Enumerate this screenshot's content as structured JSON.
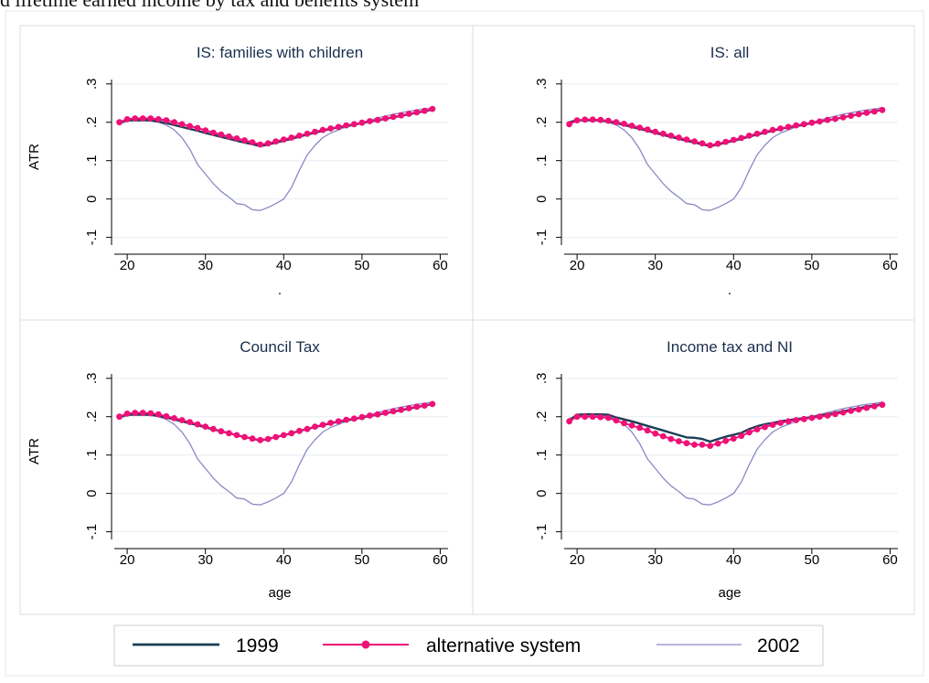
{
  "page_caption": "d lifetime earned income by tax and benefits system",
  "colors": {
    "s1999": "#1c3d55",
    "alternative": "#ee1177",
    "s2002": "#8a89c4",
    "grid": "#e8eef2",
    "axis": "#000000",
    "title": "#1a2f4e",
    "panel_border": "#dddddd"
  },
  "legend": {
    "items": [
      {
        "label": "1999",
        "series": "s1999"
      },
      {
        "label": "alternative system",
        "series": "alternative"
      },
      {
        "label": "2002",
        "series": "s2002"
      }
    ]
  },
  "chart_data": [
    {
      "type": "line",
      "title": "IS: families with children",
      "ylabel": "ATR",
      "xlabel": ".",
      "xlim": [
        18,
        61
      ],
      "ylim": [
        -0.12,
        0.34
      ],
      "x_ticks": [
        20,
        30,
        40,
        50,
        60
      ],
      "y_ticks": [
        -0.1,
        0,
        0.1,
        0.2,
        0.3
      ],
      "y_tick_labels": [
        "-.1",
        "0",
        ".1",
        ".2",
        ".3"
      ],
      "x": [
        19,
        20,
        21,
        22,
        23,
        24,
        25,
        26,
        27,
        28,
        29,
        30,
        31,
        32,
        33,
        34,
        35,
        36,
        37,
        38,
        39,
        40,
        41,
        42,
        43,
        44,
        45,
        46,
        47,
        48,
        49,
        50,
        51,
        52,
        53,
        54,
        55,
        56,
        57,
        58,
        59
      ],
      "series": [
        {
          "name": "1999",
          "key": "s1999",
          "values": [
            0.2,
            0.205,
            0.205,
            0.205,
            0.205,
            0.202,
            0.198,
            0.193,
            0.188,
            0.183,
            0.178,
            0.172,
            0.167,
            0.162,
            0.157,
            0.152,
            0.147,
            0.143,
            0.138,
            0.142,
            0.147,
            0.152,
            0.157,
            0.163,
            0.168,
            0.173,
            0.178,
            0.183,
            0.187,
            0.19,
            0.194,
            0.198,
            0.202,
            0.205,
            0.209,
            0.213,
            0.217,
            0.221,
            0.225,
            0.229,
            0.233
          ]
        },
        {
          "name": "alternative system",
          "key": "alternative",
          "values": [
            0.2,
            0.208,
            0.21,
            0.21,
            0.21,
            0.208,
            0.205,
            0.2,
            0.195,
            0.19,
            0.185,
            0.179,
            0.173,
            0.168,
            0.163,
            0.158,
            0.153,
            0.148,
            0.142,
            0.145,
            0.15,
            0.155,
            0.16,
            0.165,
            0.17,
            0.175,
            0.18,
            0.184,
            0.188,
            0.192,
            0.195,
            0.199,
            0.203,
            0.206,
            0.21,
            0.214,
            0.218,
            0.222,
            0.226,
            0.23,
            0.235
          ]
        },
        {
          "name": "2002",
          "key": "s2002",
          "values": [
            0.195,
            0.203,
            0.205,
            0.205,
            0.203,
            0.2,
            0.193,
            0.18,
            0.16,
            0.13,
            0.09,
            0.065,
            0.04,
            0.02,
            0.005,
            -0.012,
            -0.015,
            -0.028,
            -0.03,
            -0.022,
            -0.012,
            0.0,
            0.03,
            0.075,
            0.115,
            0.14,
            0.16,
            0.172,
            0.18,
            0.188,
            0.194,
            0.2,
            0.206,
            0.211,
            0.216,
            0.221,
            0.225,
            0.229,
            0.232,
            0.235,
            0.238
          ]
        }
      ]
    },
    {
      "type": "line",
      "title": "IS: all",
      "ylabel": "",
      "xlabel": ".",
      "xlim": [
        18,
        61
      ],
      "ylim": [
        -0.12,
        0.34
      ],
      "x_ticks": [
        20,
        30,
        40,
        50,
        60
      ],
      "y_ticks": [
        -0.1,
        0,
        0.1,
        0.2,
        0.3
      ],
      "y_tick_labels": [
        "-.1",
        "0",
        ".1",
        ".2",
        ".3"
      ],
      "x": [
        19,
        20,
        21,
        22,
        23,
        24,
        25,
        26,
        27,
        28,
        29,
        30,
        31,
        32,
        33,
        34,
        35,
        36,
        37,
        38,
        39,
        40,
        41,
        42,
        43,
        44,
        45,
        46,
        47,
        48,
        49,
        50,
        51,
        52,
        53,
        54,
        55,
        56,
        57,
        58,
        59
      ],
      "series": [
        {
          "name": "1999",
          "key": "s1999",
          "values": [
            0.2,
            0.205,
            0.205,
            0.205,
            0.205,
            0.202,
            0.198,
            0.193,
            0.188,
            0.183,
            0.178,
            0.172,
            0.167,
            0.162,
            0.157,
            0.152,
            0.147,
            0.143,
            0.138,
            0.142,
            0.147,
            0.152,
            0.157,
            0.163,
            0.168,
            0.173,
            0.178,
            0.183,
            0.187,
            0.19,
            0.194,
            0.198,
            0.202,
            0.205,
            0.209,
            0.213,
            0.217,
            0.221,
            0.225,
            0.229,
            0.233
          ]
        },
        {
          "name": "alternative system",
          "key": "alternative",
          "values": [
            0.195,
            0.205,
            0.207,
            0.207,
            0.206,
            0.204,
            0.2,
            0.196,
            0.191,
            0.186,
            0.181,
            0.175,
            0.17,
            0.165,
            0.16,
            0.155,
            0.15,
            0.145,
            0.14,
            0.144,
            0.149,
            0.154,
            0.159,
            0.165,
            0.17,
            0.175,
            0.18,
            0.184,
            0.188,
            0.192,
            0.195,
            0.199,
            0.202,
            0.206,
            0.209,
            0.213,
            0.217,
            0.221,
            0.225,
            0.228,
            0.232
          ]
        },
        {
          "name": "2002",
          "key": "s2002",
          "values": [
            0.195,
            0.203,
            0.205,
            0.205,
            0.203,
            0.2,
            0.193,
            0.18,
            0.16,
            0.13,
            0.09,
            0.065,
            0.04,
            0.02,
            0.005,
            -0.012,
            -0.015,
            -0.028,
            -0.03,
            -0.022,
            -0.012,
            0.0,
            0.03,
            0.075,
            0.115,
            0.14,
            0.16,
            0.172,
            0.18,
            0.188,
            0.194,
            0.2,
            0.206,
            0.211,
            0.216,
            0.221,
            0.225,
            0.229,
            0.232,
            0.235,
            0.238
          ]
        }
      ]
    },
    {
      "type": "line",
      "title": "Council Tax",
      "ylabel": "ATR",
      "xlabel": "age",
      "xlim": [
        18,
        61
      ],
      "ylim": [
        -0.12,
        0.34
      ],
      "x_ticks": [
        20,
        30,
        40,
        50,
        60
      ],
      "y_ticks": [
        -0.1,
        0,
        0.1,
        0.2,
        0.3
      ],
      "y_tick_labels": [
        "-.1",
        "0",
        ".1",
        ".2",
        ".3"
      ],
      "x": [
        19,
        20,
        21,
        22,
        23,
        24,
        25,
        26,
        27,
        28,
        29,
        30,
        31,
        32,
        33,
        34,
        35,
        36,
        37,
        38,
        39,
        40,
        41,
        42,
        43,
        44,
        45,
        46,
        47,
        48,
        49,
        50,
        51,
        52,
        53,
        54,
        55,
        56,
        57,
        58,
        59
      ],
      "series": [
        {
          "name": "1999",
          "key": "s1999",
          "values": [
            0.2,
            0.205,
            0.205,
            0.205,
            0.205,
            0.202,
            0.198,
            0.193,
            0.188,
            0.183,
            0.178,
            0.172,
            0.167,
            0.162,
            0.157,
            0.152,
            0.147,
            0.143,
            0.138,
            0.142,
            0.147,
            0.152,
            0.157,
            0.163,
            0.168,
            0.173,
            0.178,
            0.183,
            0.187,
            0.19,
            0.194,
            0.198,
            0.202,
            0.205,
            0.209,
            0.213,
            0.217,
            0.221,
            0.225,
            0.229,
            0.233
          ]
        },
        {
          "name": "alternative system",
          "key": "alternative",
          "values": [
            0.2,
            0.208,
            0.21,
            0.21,
            0.209,
            0.206,
            0.201,
            0.196,
            0.191,
            0.186,
            0.18,
            0.174,
            0.168,
            0.162,
            0.157,
            0.152,
            0.147,
            0.143,
            0.139,
            0.142,
            0.147,
            0.152,
            0.157,
            0.163,
            0.168,
            0.174,
            0.179,
            0.184,
            0.188,
            0.192,
            0.195,
            0.199,
            0.203,
            0.206,
            0.21,
            0.214,
            0.218,
            0.222,
            0.226,
            0.229,
            0.233
          ]
        },
        {
          "name": "2002",
          "key": "s2002",
          "values": [
            0.195,
            0.203,
            0.205,
            0.205,
            0.203,
            0.2,
            0.193,
            0.18,
            0.16,
            0.13,
            0.09,
            0.065,
            0.04,
            0.02,
            0.005,
            -0.012,
            -0.015,
            -0.028,
            -0.03,
            -0.022,
            -0.012,
            0.0,
            0.03,
            0.075,
            0.115,
            0.14,
            0.16,
            0.172,
            0.18,
            0.188,
            0.194,
            0.2,
            0.206,
            0.211,
            0.216,
            0.221,
            0.225,
            0.229,
            0.232,
            0.235,
            0.238
          ]
        }
      ]
    },
    {
      "type": "line",
      "title": "Income tax and NI",
      "ylabel": "",
      "xlabel": "age",
      "xlim": [
        18,
        61
      ],
      "ylim": [
        -0.12,
        0.34
      ],
      "x_ticks": [
        20,
        30,
        40,
        50,
        60
      ],
      "y_ticks": [
        -0.1,
        0,
        0.1,
        0.2,
        0.3
      ],
      "y_tick_labels": [
        "-.1",
        "0",
        ".1",
        ".2",
        ".3"
      ],
      "x": [
        19,
        20,
        21,
        22,
        23,
        24,
        25,
        26,
        27,
        28,
        29,
        30,
        31,
        32,
        33,
        34,
        35,
        36,
        37,
        38,
        39,
        40,
        41,
        42,
        43,
        44,
        45,
        46,
        47,
        48,
        49,
        50,
        51,
        52,
        53,
        54,
        55,
        56,
        57,
        58,
        59
      ],
      "series": [
        {
          "name": "1999",
          "key": "s1999",
          "values": [
            0.19,
            0.205,
            0.206,
            0.206,
            0.206,
            0.205,
            0.198,
            0.193,
            0.188,
            0.182,
            0.176,
            0.17,
            0.164,
            0.158,
            0.152,
            0.146,
            0.145,
            0.142,
            0.135,
            0.142,
            0.148,
            0.153,
            0.158,
            0.168,
            0.175,
            0.18,
            0.184,
            0.188,
            0.191,
            0.194,
            0.196,
            0.199,
            0.203,
            0.206,
            0.21,
            0.214,
            0.218,
            0.222,
            0.226,
            0.229,
            0.233
          ]
        },
        {
          "name": "alternative system",
          "key": "alternative",
          "values": [
            0.188,
            0.2,
            0.2,
            0.2,
            0.199,
            0.197,
            0.19,
            0.183,
            0.177,
            0.171,
            0.164,
            0.156,
            0.149,
            0.142,
            0.136,
            0.131,
            0.127,
            0.127,
            0.124,
            0.13,
            0.137,
            0.143,
            0.15,
            0.159,
            0.167,
            0.173,
            0.179,
            0.184,
            0.188,
            0.191,
            0.194,
            0.197,
            0.2,
            0.203,
            0.207,
            0.211,
            0.215,
            0.219,
            0.223,
            0.227,
            0.231
          ]
        },
        {
          "name": "2002",
          "key": "s2002",
          "values": [
            0.195,
            0.203,
            0.205,
            0.205,
            0.203,
            0.2,
            0.193,
            0.18,
            0.16,
            0.13,
            0.09,
            0.065,
            0.04,
            0.02,
            0.005,
            -0.012,
            -0.015,
            -0.028,
            -0.03,
            -0.022,
            -0.012,
            0.0,
            0.03,
            0.075,
            0.115,
            0.14,
            0.16,
            0.172,
            0.18,
            0.188,
            0.194,
            0.2,
            0.206,
            0.211,
            0.216,
            0.221,
            0.225,
            0.229,
            0.232,
            0.235,
            0.238
          ]
        }
      ]
    }
  ]
}
